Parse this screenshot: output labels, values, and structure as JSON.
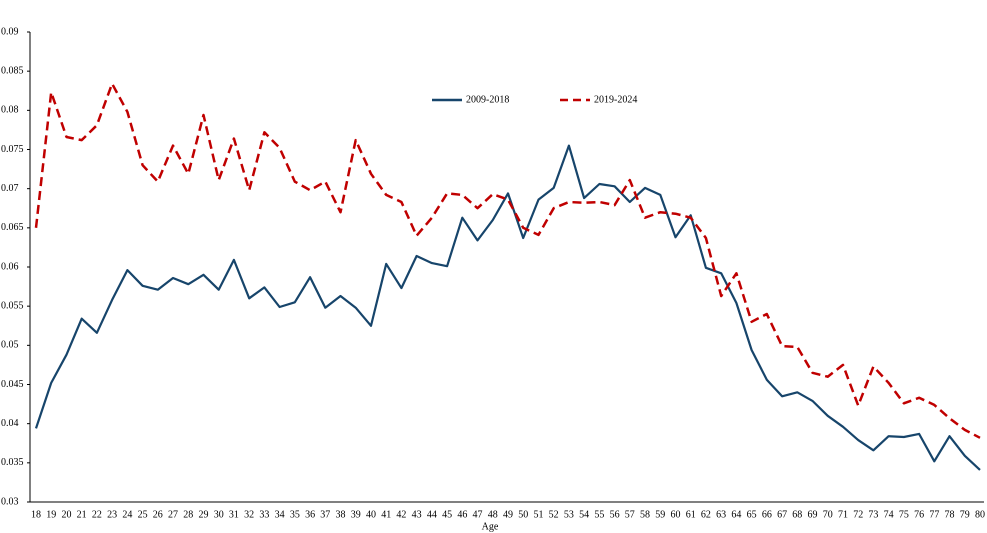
{
  "chart_data": {
    "type": "line",
    "x_label": "Age",
    "categories": [
      "18",
      "19",
      "20",
      "21",
      "22",
      "23",
      "24",
      "25",
      "26",
      "27",
      "28",
      "29",
      "30",
      "31",
      "32",
      "33",
      "34",
      "35",
      "36",
      "37",
      "38",
      "39",
      "40",
      "41",
      "42",
      "43",
      "44",
      "45",
      "46",
      "47",
      "48",
      "49",
      "50",
      "51",
      "52",
      "53",
      "54",
      "55",
      "56",
      "57",
      "58",
      "59",
      "60",
      "61",
      "62",
      "63",
      "64",
      "65",
      "66",
      "67",
      "68",
      "69",
      "70",
      "71",
      "72",
      "73",
      "74",
      "75",
      "76",
      "77",
      "78",
      "79",
      "80"
    ],
    "series": [
      {
        "name": "2009-2018",
        "color": "#17456b",
        "dash": false,
        "values": [
          0.0394,
          0.0452,
          0.0488,
          0.0534,
          0.0516,
          0.0558,
          0.0596,
          0.0576,
          0.0571,
          0.0586,
          0.0578,
          0.059,
          0.0571,
          0.0609,
          0.056,
          0.0574,
          0.0549,
          0.0555,
          0.0587,
          0.0548,
          0.0563,
          0.0548,
          0.0525,
          0.0604,
          0.0573,
          0.0614,
          0.0605,
          0.0601,
          0.0663,
          0.0634,
          0.066,
          0.0694,
          0.0637,
          0.0686,
          0.0701,
          0.0755,
          0.0688,
          0.0706,
          0.0703,
          0.0683,
          0.0701,
          0.0692,
          0.0638,
          0.0666,
          0.0599,
          0.0592,
          0.0554,
          0.0494,
          0.0456,
          0.0435,
          0.044,
          0.0429,
          0.041,
          0.0396,
          0.0379,
          0.0366,
          0.0384,
          0.0383,
          0.0387,
          0.0352,
          0.0384,
          0.0359,
          0.0341
        ]
      },
      {
        "name": "2019-2024",
        "color": "#c00000",
        "dash": true,
        "values": [
          0.065,
          0.0823,
          0.0766,
          0.0762,
          0.0781,
          0.0834,
          0.0798,
          0.073,
          0.0709,
          0.0755,
          0.0719,
          0.0794,
          0.0711,
          0.0764,
          0.0698,
          0.0772,
          0.0752,
          0.0709,
          0.0698,
          0.0709,
          0.067,
          0.0762,
          0.0719,
          0.0692,
          0.0683,
          0.064,
          0.0663,
          0.0694,
          0.0692,
          0.0675,
          0.0693,
          0.0686,
          0.065,
          0.0641,
          0.0675,
          0.0683,
          0.0682,
          0.0683,
          0.0679,
          0.0711,
          0.0663,
          0.067,
          0.0668,
          0.0663,
          0.0637,
          0.0563,
          0.0592,
          0.053,
          0.054,
          0.0499,
          0.0498,
          0.0465,
          0.046,
          0.0475,
          0.0423,
          0.0473,
          0.0452,
          0.0426,
          0.0433,
          0.0424,
          0.0407,
          0.0392,
          0.0382
        ]
      }
    ],
    "ylim": [
      0.03,
      0.09
    ],
    "yticks": [
      0.03,
      0.035,
      0.04,
      0.045,
      0.05,
      0.055,
      0.06,
      0.065,
      0.07,
      0.075,
      0.08,
      0.085,
      0.09
    ],
    "grid": false,
    "legend": "top"
  }
}
